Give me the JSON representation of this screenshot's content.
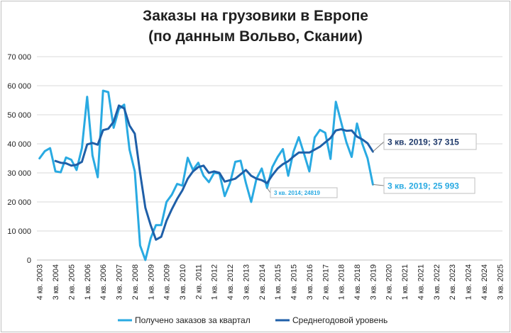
{
  "chart_data": {
    "type": "line",
    "title": [
      "Заказы на грузовики в Европе",
      "(по данным Вольво, Скании)"
    ],
    "xlabel": "",
    "ylabel": "",
    "ylim": [
      0,
      70000
    ],
    "yticks": [
      0,
      10000,
      20000,
      30000,
      40000,
      50000,
      60000,
      70000
    ],
    "ytick_labels": [
      "0",
      "10 000",
      "20 000",
      "30 000",
      "40 000",
      "50 000",
      "60 000",
      "70 000"
    ],
    "xtick_labels": [
      "4 кв. 2003",
      "3 кв. 2004",
      "2 кв. 2005",
      "1 кв. 2006",
      "4 кв. 2006",
      "3 кв. 2007",
      "2 кв. 2008",
      "1 кв. 2009",
      "4 кв. 2009",
      "3 кв. 2010",
      "2 кв. 2011",
      "1 кв. 2012",
      "4 кв. 2012",
      "3 кв. 2013",
      "2 кв. 2014",
      "1 кв. 2015",
      "4 кв. 2015",
      "3 кв. 2016",
      "2 кв. 2017",
      "1 кв. 2018",
      "4 кв. 2018",
      "3 кв. 2019",
      "2 кв. 2020",
      "1 кв. 2021",
      "4 кв. 2021",
      "3 кв. 2022",
      "2 кв. 2023",
      "1 кв. 2024",
      "4 кв. 2024",
      "3 кв. 2025"
    ],
    "grid": true,
    "legend": "bottom",
    "series": [
      {
        "name": "Получено заказов за квартал",
        "color": "#29aae2",
        "values": [
          35000,
          37500,
          38500,
          30500,
          30200,
          35300,
          34500,
          31000,
          38500,
          56200,
          36000,
          28500,
          58300,
          57800,
          45500,
          52000,
          53500,
          38000,
          30500,
          5000,
          0,
          7500,
          12000,
          12000,
          20000,
          22500,
          26200,
          25600,
          35200,
          31000,
          33500,
          29000,
          26800,
          30000,
          29800,
          22000,
          26500,
          33800,
          34200,
          26500,
          20000,
          28000,
          31500,
          24819,
          32000,
          35500,
          38200,
          29000,
          37300,
          42300,
          36500,
          30500,
          42200,
          44800,
          43800,
          34800,
          54500,
          47500,
          40500,
          35500,
          47000,
          40000,
          35000,
          25993
        ]
      },
      {
        "name": "Среднегодовой уровень",
        "color": "#1f5fa8",
        "values": [
          null,
          null,
          null,
          34100,
          33500,
          33300,
          32500,
          32800,
          33800,
          39800,
          40300,
          39700,
          44700,
          45200,
          47600,
          53200,
          52200,
          46300,
          43500,
          30000,
          18000,
          12000,
          7000,
          8000,
          13500,
          17500,
          21000,
          24000,
          28000,
          30500,
          32000,
          32500,
          30000,
          30500,
          30000,
          27000,
          27500,
          28000,
          29500,
          31000,
          29000,
          28000,
          27500,
          26500,
          29200,
          31500,
          33000,
          34000,
          35600,
          37000,
          37000,
          37000,
          38000,
          39000,
          40500,
          42000,
          44600,
          45000,
          44500,
          44600,
          42500,
          41500,
          40200,
          37315
        ]
      }
    ],
    "annotations": [
      {
        "text": "3 кв. 2019; 37 315",
        "series": 1,
        "point": 63,
        "color": "#1f3a6b"
      },
      {
        "text": "3 кв. 2019; 25 993",
        "series": 0,
        "point": 63,
        "color": "#29aae2"
      },
      {
        "text": "3 кв. 2014; 24819",
        "series": 0,
        "point": 43,
        "color": "#29aae2"
      }
    ]
  }
}
